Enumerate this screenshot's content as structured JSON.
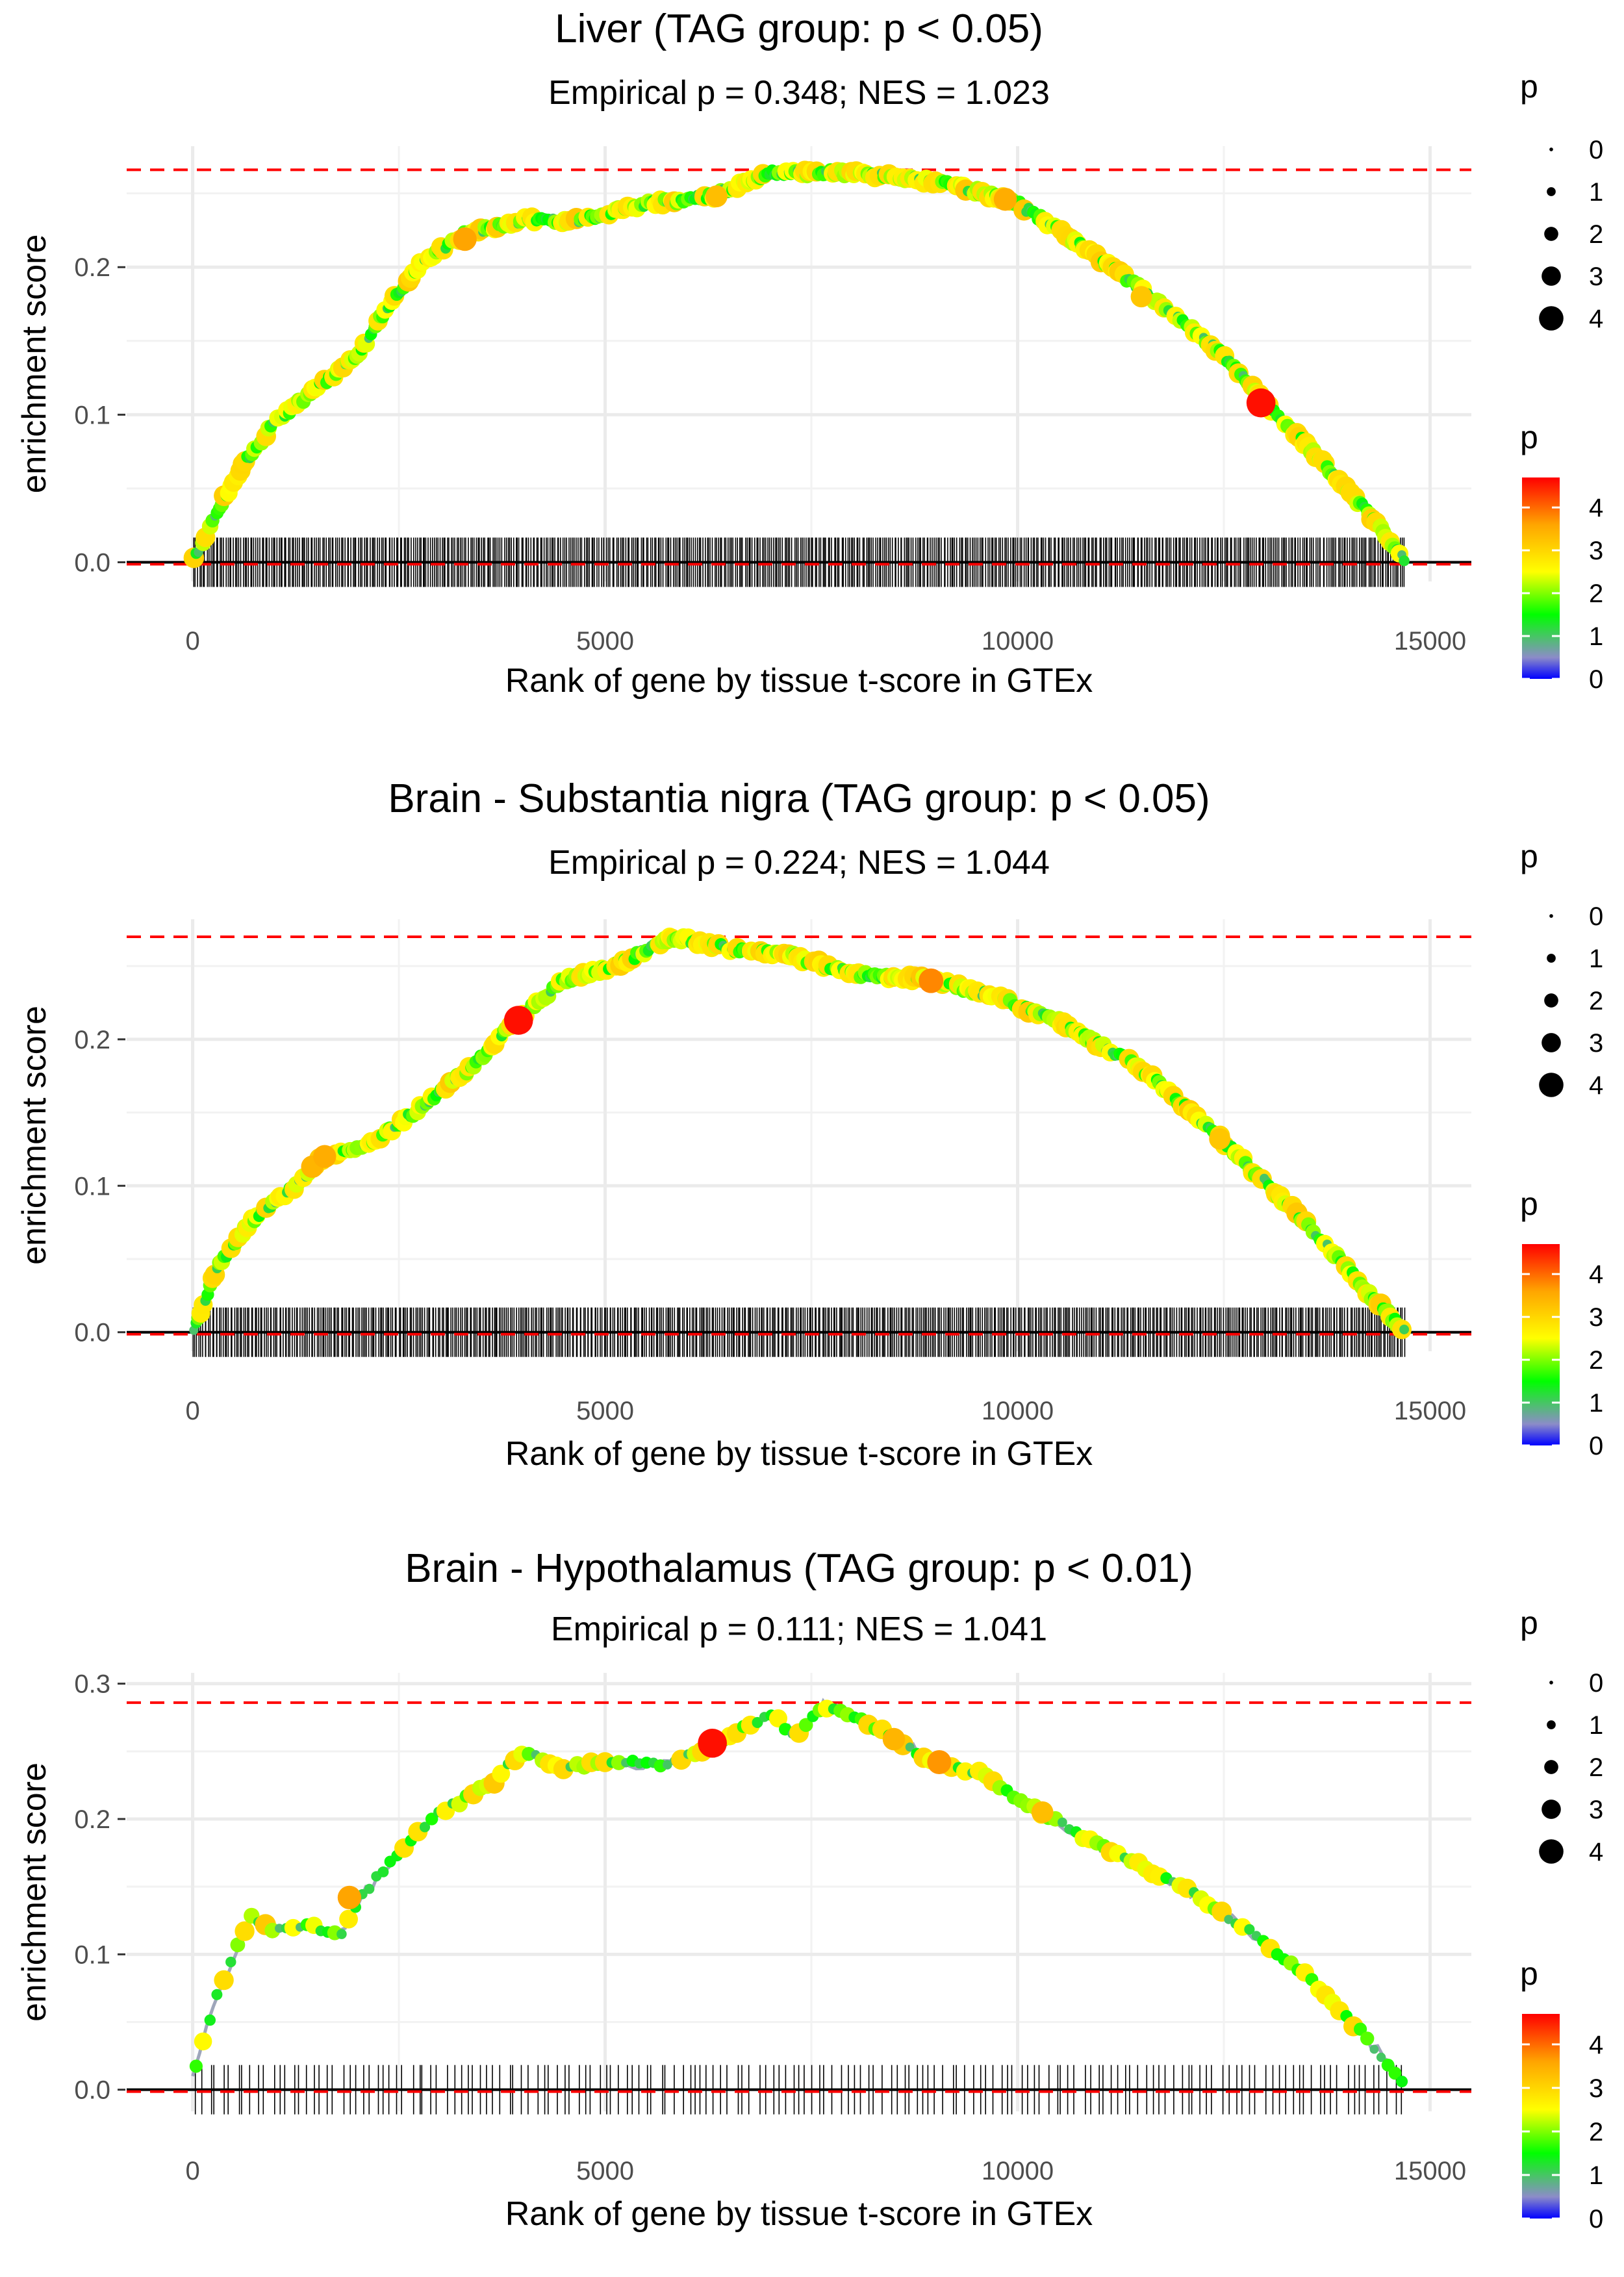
{
  "colors": {
    "reference_line": "#ff0000",
    "baseline": "#000000",
    "grid": "#ebebeb",
    "curve_line": "#9ea6ba",
    "scale_stops": [
      "#0000ff",
      "#8c8cc8",
      "#00ff00",
      "#ffff00",
      "#ffa500",
      "#ff0000"
    ]
  },
  "legend": {
    "size_title": "p",
    "size_labels": [
      "0",
      "1",
      "2",
      "3",
      "4"
    ],
    "color_title": "p",
    "color_labels": [
      "0",
      "1",
      "2",
      "3",
      "4"
    ],
    "color_range": [
      0,
      4.7
    ]
  },
  "chart_data": [
    {
      "type": "line",
      "title": "Liver (TAG group: p < 0.05)",
      "subtitle": "Empirical p = 0.348; NES = 1.023",
      "xlabel": "Rank of gene by tissue t-score in GTEx",
      "ylabel": "enrichment score",
      "xlim": [
        -800,
        15500
      ],
      "ylim": [
        -0.013,
        0.282
      ],
      "xticks": [
        0,
        5000,
        10000,
        15000
      ],
      "xtick_labels": [
        "0",
        "5000",
        "10000",
        "15000"
      ],
      "yticks": [
        0.0,
        0.1,
        0.2
      ],
      "ytick_labels": [
        "0.0",
        "0.1",
        "0.2"
      ],
      "max_es": 0.266,
      "n_ranks": 14700,
      "n_hits": 640,
      "curve": [
        {
          "x": 0,
          "y": 0.0
        },
        {
          "x": 300,
          "y": 0.035
        },
        {
          "x": 600,
          "y": 0.065
        },
        {
          "x": 1000,
          "y": 0.095
        },
        {
          "x": 1500,
          "y": 0.118
        },
        {
          "x": 2000,
          "y": 0.14
        },
        {
          "x": 2300,
          "y": 0.168
        },
        {
          "x": 2800,
          "y": 0.205
        },
        {
          "x": 3300,
          "y": 0.222
        },
        {
          "x": 4000,
          "y": 0.232
        },
        {
          "x": 4700,
          "y": 0.232
        },
        {
          "x": 5500,
          "y": 0.243
        },
        {
          "x": 6300,
          "y": 0.248
        },
        {
          "x": 7000,
          "y": 0.264
        },
        {
          "x": 7800,
          "y": 0.264
        },
        {
          "x": 8500,
          "y": 0.262
        },
        {
          "x": 9300,
          "y": 0.255
        },
        {
          "x": 10000,
          "y": 0.243
        },
        {
          "x": 10500,
          "y": 0.225
        },
        {
          "x": 11500,
          "y": 0.185
        },
        {
          "x": 12500,
          "y": 0.14
        },
        {
          "x": 13000,
          "y": 0.108
        },
        {
          "x": 13700,
          "y": 0.068
        },
        {
          "x": 14300,
          "y": 0.03
        },
        {
          "x": 14700,
          "y": 0.0
        }
      ],
      "highlights": [
        {
          "x": 3300,
          "y": 0.219,
          "p": 3.6
        },
        {
          "x": 6350,
          "y": 0.248,
          "p": 3.3
        },
        {
          "x": 9850,
          "y": 0.246,
          "p": 3.5
        },
        {
          "x": 11500,
          "y": 0.18,
          "p": 3.2
        },
        {
          "x": 12950,
          "y": 0.108,
          "p": 4.6
        }
      ]
    },
    {
      "type": "line",
      "title": "Brain - Substantia nigra (TAG group: p < 0.05)",
      "subtitle": "Empirical p = 0.224; NES = 1.044",
      "xlabel": "Rank of gene by tissue t-score in GTEx",
      "ylabel": "enrichment score",
      "xlim": [
        -800,
        15500
      ],
      "ylim": [
        -0.013,
        0.282
      ],
      "xticks": [
        0,
        5000,
        10000,
        15000
      ],
      "xtick_labels": [
        "0",
        "5000",
        "10000",
        "15000"
      ],
      "yticks": [
        0.0,
        0.1,
        0.2
      ],
      "ytick_labels": [
        "0.0",
        "0.1",
        "0.2"
      ],
      "max_es": 0.27,
      "n_ranks": 14700,
      "n_hits": 650,
      "curve": [
        {
          "x": 0,
          "y": 0.0
        },
        {
          "x": 300,
          "y": 0.045
        },
        {
          "x": 700,
          "y": 0.075
        },
        {
          "x": 1200,
          "y": 0.098
        },
        {
          "x": 1600,
          "y": 0.12
        },
        {
          "x": 2200,
          "y": 0.13
        },
        {
          "x": 2800,
          "y": 0.155
        },
        {
          "x": 3400,
          "y": 0.182
        },
        {
          "x": 3900,
          "y": 0.212
        },
        {
          "x": 4500,
          "y": 0.24
        },
        {
          "x": 5200,
          "y": 0.252
        },
        {
          "x": 5800,
          "y": 0.27
        },
        {
          "x": 6500,
          "y": 0.262
        },
        {
          "x": 7200,
          "y": 0.258
        },
        {
          "x": 8000,
          "y": 0.245
        },
        {
          "x": 9000,
          "y": 0.24
        },
        {
          "x": 9800,
          "y": 0.228
        },
        {
          "x": 10500,
          "y": 0.212
        },
        {
          "x": 11500,
          "y": 0.18
        },
        {
          "x": 12500,
          "y": 0.13
        },
        {
          "x": 13500,
          "y": 0.075
        },
        {
          "x": 14200,
          "y": 0.03
        },
        {
          "x": 14700,
          "y": 0.0
        }
      ],
      "highlights": [
        {
          "x": 1450,
          "y": 0.113,
          "p": 3.4
        },
        {
          "x": 1600,
          "y": 0.12,
          "p": 3.5
        },
        {
          "x": 3950,
          "y": 0.213,
          "p": 4.6
        },
        {
          "x": 8950,
          "y": 0.24,
          "p": 3.8
        },
        {
          "x": 12450,
          "y": 0.132,
          "p": 3.2
        }
      ]
    },
    {
      "type": "line",
      "title": "Brain - Hypothalamus (TAG group: p < 0.01)",
      "subtitle": "Empirical p = 0.111; NES = 1.041",
      "xlabel": "Rank of gene by tissue t-score in GTEx",
      "ylabel": "enrichment score",
      "xlim": [
        -800,
        15500
      ],
      "ylim": [
        -0.016,
        0.308
      ],
      "xticks": [
        0,
        5000,
        10000,
        15000
      ],
      "xtick_labels": [
        "0",
        "5000",
        "10000",
        "15000"
      ],
      "yticks": [
        0.0,
        0.1,
        0.2,
        0.3
      ],
      "ytick_labels": [
        "0.0",
        "0.1",
        "0.2",
        "0.3"
      ],
      "max_es": 0.286,
      "n_ranks": 14700,
      "n_hits": 175,
      "curve": [
        {
          "x": 0,
          "y": 0.01
        },
        {
          "x": 300,
          "y": 0.07
        },
        {
          "x": 700,
          "y": 0.128
        },
        {
          "x": 1000,
          "y": 0.118
        },
        {
          "x": 1400,
          "y": 0.122
        },
        {
          "x": 1800,
          "y": 0.115
        },
        {
          "x": 2000,
          "y": 0.14
        },
        {
          "x": 2500,
          "y": 0.175
        },
        {
          "x": 3000,
          "y": 0.205
        },
        {
          "x": 3600,
          "y": 0.225
        },
        {
          "x": 4000,
          "y": 0.25
        },
        {
          "x": 4500,
          "y": 0.238
        },
        {
          "x": 5000,
          "y": 0.242
        },
        {
          "x": 5800,
          "y": 0.24
        },
        {
          "x": 6300,
          "y": 0.255
        },
        {
          "x": 7000,
          "y": 0.278
        },
        {
          "x": 7300,
          "y": 0.262
        },
        {
          "x": 7650,
          "y": 0.284
        },
        {
          "x": 8000,
          "y": 0.276
        },
        {
          "x": 8500,
          "y": 0.26
        },
        {
          "x": 9000,
          "y": 0.242
        },
        {
          "x": 9500,
          "y": 0.235
        },
        {
          "x": 10000,
          "y": 0.215
        },
        {
          "x": 11000,
          "y": 0.18
        },
        {
          "x": 12000,
          "y": 0.15
        },
        {
          "x": 12800,
          "y": 0.118
        },
        {
          "x": 13500,
          "y": 0.085
        },
        {
          "x": 14200,
          "y": 0.04
        },
        {
          "x": 14700,
          "y": 0.005
        }
      ],
      "highlights": [
        {
          "x": 1900,
          "y": 0.142,
          "p": 3.6
        },
        {
          "x": 6300,
          "y": 0.256,
          "p": 4.6
        },
        {
          "x": 8500,
          "y": 0.259,
          "p": 3.4
        },
        {
          "x": 9050,
          "y": 0.242,
          "p": 3.7
        },
        {
          "x": 10300,
          "y": 0.205,
          "p": 3.3
        }
      ]
    }
  ]
}
